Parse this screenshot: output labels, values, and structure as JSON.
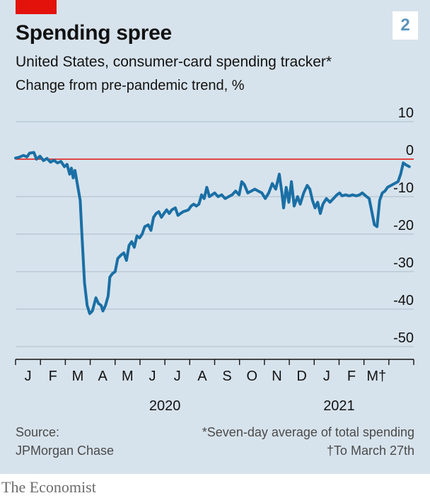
{
  "header": {
    "badge": "2",
    "title": "Spending spree",
    "subtitle": "United States, consumer-card spending tracker*",
    "unit": "Change from pre-pandemic trend, %"
  },
  "footer": {
    "source_label": "Source:",
    "source_name": "JPMorgan Chase",
    "note1": "*Seven-day average of total spending",
    "note2": "†To March 27th",
    "brand": "The Economist"
  },
  "colors": {
    "panel": "#d7e3ec",
    "line": "#1a6fa5",
    "zero_line": "#e3120b",
    "grid": "#b3c4d1",
    "accent_tag": "#e3120b"
  },
  "chart_data": {
    "type": "line",
    "y_ticks": [
      "10",
      "0",
      "-10",
      "-20",
      "-30",
      "-40",
      "-50"
    ],
    "y_tick_values": [
      10,
      0,
      -10,
      -20,
      -30,
      -40,
      -50
    ],
    "ylim": [
      -50,
      10
    ],
    "x_month_labels": [
      "J",
      "F",
      "M",
      "A",
      "M",
      "J",
      "J",
      "A",
      "S",
      "O",
      "N",
      "D",
      "J",
      "F",
      "M†"
    ],
    "year_labels": [
      "2020",
      "2021"
    ],
    "x_range": [
      "2020-01-01",
      "2021-04-01"
    ],
    "grid": true,
    "series": [
      {
        "points": [
          [
            "2020-01-01",
            0.3
          ],
          [
            "2020-01-05",
            0.5
          ],
          [
            "2020-01-10",
            1.0
          ],
          [
            "2020-01-14",
            0.6
          ],
          [
            "2020-01-17",
            1.6
          ],
          [
            "2020-01-22",
            1.8
          ],
          [
            "2020-01-25",
            0.0
          ],
          [
            "2020-01-29",
            0.8
          ],
          [
            "2020-02-02",
            -0.4
          ],
          [
            "2020-02-06",
            0.2
          ],
          [
            "2020-02-10",
            -0.8
          ],
          [
            "2020-02-14",
            -0.3
          ],
          [
            "2020-02-18",
            -1.0
          ],
          [
            "2020-02-22",
            -0.6
          ],
          [
            "2020-02-26",
            -2.0
          ],
          [
            "2020-02-29",
            -1.4
          ],
          [
            "2020-03-03",
            -4.0
          ],
          [
            "2020-03-05",
            -2.4
          ],
          [
            "2020-03-07",
            -5.0
          ],
          [
            "2020-03-09",
            -3.0
          ],
          [
            "2020-03-12",
            -7.0
          ],
          [
            "2020-03-15",
            -11.0
          ],
          [
            "2020-03-17",
            -20.0
          ],
          [
            "2020-03-20",
            -33.0
          ],
          [
            "2020-03-23",
            -39.0
          ],
          [
            "2020-03-26",
            -41.2
          ],
          [
            "2020-03-29",
            -40.5
          ],
          [
            "2020-04-02",
            -37.0
          ],
          [
            "2020-04-05",
            -38.5
          ],
          [
            "2020-04-08",
            -39.0
          ],
          [
            "2020-04-10",
            -40.5
          ],
          [
            "2020-04-13",
            -39.0
          ],
          [
            "2020-04-16",
            -36.5
          ],
          [
            "2020-04-18",
            -31.5
          ],
          [
            "2020-04-21",
            -30.5
          ],
          [
            "2020-04-24",
            -30.0
          ],
          [
            "2020-04-27",
            -26.5
          ],
          [
            "2020-05-01",
            -25.5
          ],
          [
            "2020-05-04",
            -25.0
          ],
          [
            "2020-05-07",
            -27.0
          ],
          [
            "2020-05-10",
            -23.0
          ],
          [
            "2020-05-13",
            -22.0
          ],
          [
            "2020-05-16",
            -23.5
          ],
          [
            "2020-05-19",
            -20.5
          ],
          [
            "2020-05-22",
            -21.0
          ],
          [
            "2020-05-25",
            -20.0
          ],
          [
            "2020-05-28",
            -18.0
          ],
          [
            "2020-06-01",
            -17.5
          ],
          [
            "2020-06-04",
            -19.0
          ],
          [
            "2020-06-07",
            -15.5
          ],
          [
            "2020-06-10",
            -14.5
          ],
          [
            "2020-06-13",
            -14.0
          ],
          [
            "2020-06-16",
            -15.5
          ],
          [
            "2020-06-19",
            -14.5
          ],
          [
            "2020-06-22",
            -13.5
          ],
          [
            "2020-06-25",
            -14.5
          ],
          [
            "2020-06-28",
            -13.5
          ],
          [
            "2020-07-02",
            -13.0
          ],
          [
            "2020-07-05",
            -15.0
          ],
          [
            "2020-07-08",
            -14.5
          ],
          [
            "2020-07-11",
            -14.0
          ],
          [
            "2020-07-14",
            -13.8
          ],
          [
            "2020-07-17",
            -13.5
          ],
          [
            "2020-07-20",
            -12.5
          ],
          [
            "2020-07-23",
            -12.0
          ],
          [
            "2020-07-26",
            -12.5
          ],
          [
            "2020-07-29",
            -12.0
          ],
          [
            "2020-08-01",
            -9.5
          ],
          [
            "2020-08-04",
            -10.5
          ],
          [
            "2020-08-07",
            -7.5
          ],
          [
            "2020-08-10",
            -10.0
          ],
          [
            "2020-08-13",
            -9.5
          ],
          [
            "2020-08-16",
            -9.0
          ],
          [
            "2020-08-20",
            -10.0
          ],
          [
            "2020-08-24",
            -9.5
          ],
          [
            "2020-08-28",
            -10.5
          ],
          [
            "2020-09-01",
            -10.0
          ],
          [
            "2020-09-05",
            -9.5
          ],
          [
            "2020-09-09",
            -8.5
          ],
          [
            "2020-09-13",
            -9.5
          ],
          [
            "2020-09-16",
            -6.0
          ],
          [
            "2020-09-19",
            -6.8
          ],
          [
            "2020-09-23",
            -9.0
          ],
          [
            "2020-09-27",
            -8.5
          ],
          [
            "2020-10-01",
            -8.0
          ],
          [
            "2020-10-05",
            -8.5
          ],
          [
            "2020-10-09",
            -9.0
          ],
          [
            "2020-10-13",
            -10.5
          ],
          [
            "2020-10-17",
            -9.0
          ],
          [
            "2020-10-21",
            -6.5
          ],
          [
            "2020-10-25",
            -8.0
          ],
          [
            "2020-10-29",
            -4.0
          ],
          [
            "2020-11-01",
            -9.0
          ],
          [
            "2020-11-03",
            -13.0
          ],
          [
            "2020-11-06",
            -7.5
          ],
          [
            "2020-11-09",
            -11.5
          ],
          [
            "2020-11-12",
            -6.0
          ],
          [
            "2020-11-15",
            -12.5
          ],
          [
            "2020-11-19",
            -10.0
          ],
          [
            "2020-11-22",
            -12.0
          ],
          [
            "2020-11-26",
            -9.0
          ],
          [
            "2020-11-30",
            -7.0
          ],
          [
            "2020-12-03",
            -8.0
          ],
          [
            "2020-12-06",
            -11.0
          ],
          [
            "2020-12-09",
            -13.0
          ],
          [
            "2020-12-12",
            -11.5
          ],
          [
            "2020-12-15",
            -14.5
          ],
          [
            "2020-12-18",
            -12.0
          ],
          [
            "2020-12-22",
            -10.5
          ],
          [
            "2020-12-26",
            -11.5
          ],
          [
            "2020-12-30",
            -10.5
          ],
          [
            "2021-01-03",
            -9.5
          ],
          [
            "2021-01-06",
            -9.0
          ],
          [
            "2021-01-09",
            -9.8
          ],
          [
            "2021-01-13",
            -9.5
          ],
          [
            "2021-01-17",
            -9.8
          ],
          [
            "2021-01-21",
            -9.5
          ],
          [
            "2021-01-25",
            -9.8
          ],
          [
            "2021-01-29",
            -9.5
          ],
          [
            "2021-02-01",
            -9.0
          ],
          [
            "2021-02-05",
            -9.8
          ],
          [
            "2021-02-09",
            -10.5
          ],
          [
            "2021-02-12",
            -14.0
          ],
          [
            "2021-02-15",
            -17.5
          ],
          [
            "2021-02-18",
            -18.0
          ],
          [
            "2021-02-21",
            -11.0
          ],
          [
            "2021-02-24",
            -9.0
          ],
          [
            "2021-02-27",
            -8.5
          ],
          [
            "2021-03-02",
            -7.5
          ],
          [
            "2021-03-06",
            -7.0
          ],
          [
            "2021-03-10",
            -6.5
          ],
          [
            "2021-03-14",
            -6.0
          ],
          [
            "2021-03-17",
            -4.0
          ],
          [
            "2021-03-20",
            -1.0
          ],
          [
            "2021-03-23",
            -1.5
          ],
          [
            "2021-03-27",
            -2.0
          ]
        ]
      }
    ]
  }
}
